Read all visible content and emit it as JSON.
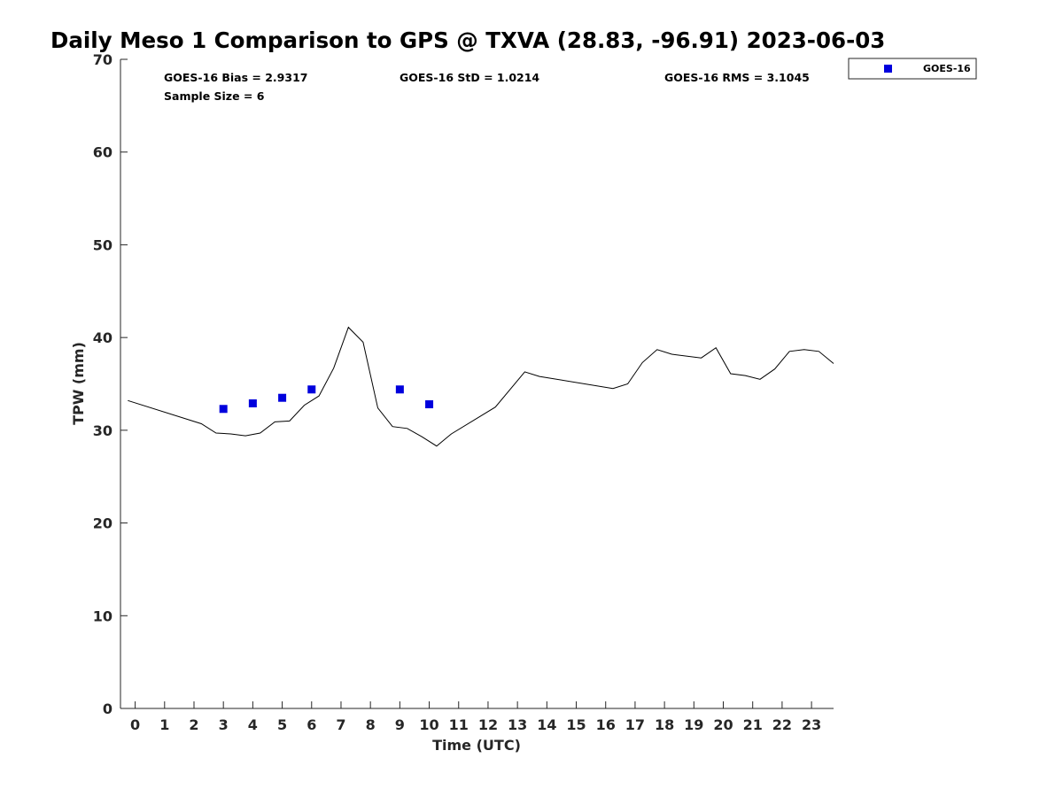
{
  "chart_data": {
    "type": "line",
    "title": "Daily Meso 1 Comparison to GPS @ TXVA (28.83, -96.91) 2023-06-03",
    "xlabel": "Time (UTC)",
    "ylabel": "TPW (mm)",
    "xlim": [
      -0.5,
      23.75
    ],
    "ylim": [
      0,
      70
    ],
    "grid": false,
    "x_ticks": [
      0,
      1,
      2,
      3,
      4,
      5,
      6,
      7,
      8,
      9,
      10,
      11,
      12,
      13,
      14,
      15,
      16,
      17,
      18,
      19,
      20,
      21,
      22,
      23
    ],
    "y_ticks": [
      0,
      10,
      20,
      30,
      40,
      50,
      60,
      70
    ],
    "legend_position": "top-right outside",
    "series": [
      {
        "name": "",
        "kind": "line",
        "color": "#000000",
        "x": [
          -0.25,
          2.25,
          2.75,
          3.25,
          3.75,
          4.25,
          4.75,
          5.25,
          5.75,
          6.25,
          6.75,
          7.25,
          7.75,
          8.25,
          8.75,
          9.25,
          9.75,
          10.25,
          10.75,
          12.25,
          13.25,
          13.75,
          16.25,
          16.75,
          17.25,
          17.75,
          18.25,
          19.25,
          19.75,
          20.25,
          20.75,
          21.25,
          21.75,
          22.25,
          22.75,
          23.25,
          23.75
        ],
        "y": [
          33.2,
          30.7,
          29.7,
          29.6,
          29.4,
          29.7,
          30.9,
          31.0,
          32.7,
          33.7,
          36.7,
          41.1,
          39.5,
          32.4,
          30.4,
          30.2,
          29.3,
          28.3,
          29.6,
          32.5,
          36.3,
          35.8,
          34.5,
          35.0,
          37.3,
          38.7,
          38.2,
          37.8,
          38.9,
          36.1,
          35.9,
          35.5,
          36.6,
          38.5,
          38.7,
          38.5,
          37.2
        ]
      },
      {
        "name": "GOES-16",
        "kind": "scatter",
        "marker": "square",
        "color": "#0000dd",
        "x": [
          3,
          4,
          5,
          6,
          9,
          10
        ],
        "y": [
          32.3,
          32.9,
          33.5,
          34.4,
          34.4,
          32.8
        ]
      }
    ],
    "annotations": {
      "bias": "GOES-16 Bias = 2.9317",
      "std": "GOES-16 StD = 1.0214",
      "rms": "GOES-16 RMS = 3.1045",
      "sample": "Sample Size = 6"
    },
    "legend": {
      "label": "GOES-16"
    }
  }
}
